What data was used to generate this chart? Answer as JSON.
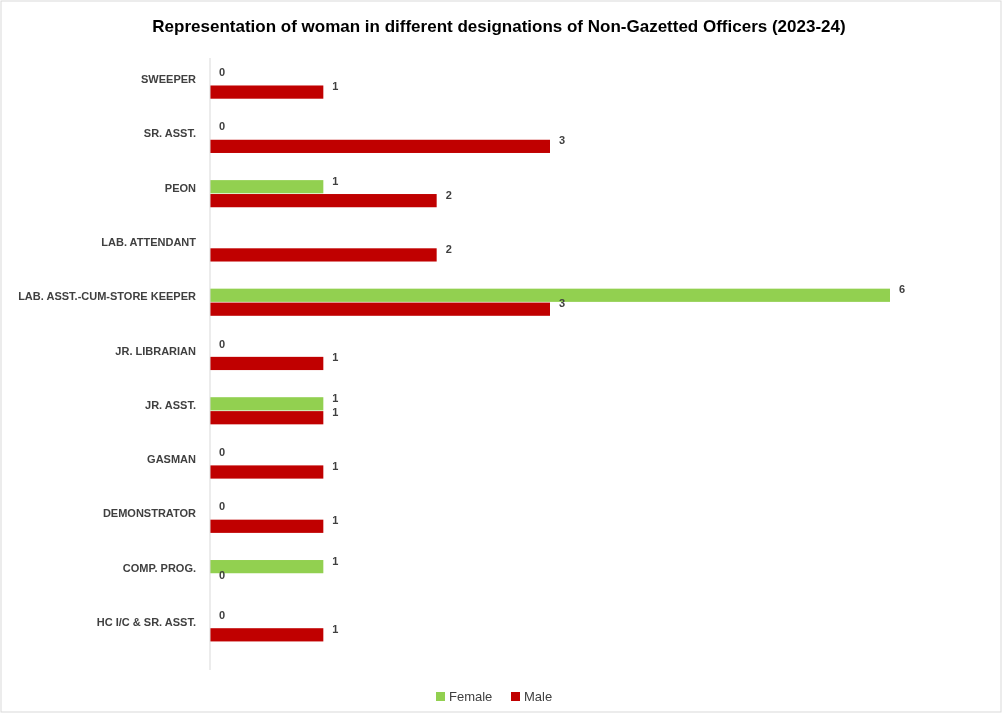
{
  "chart_data": {
    "type": "bar",
    "orientation": "horizontal",
    "title": "Representation of woman in different designations of Non-Gazetted Officers (2023-24)",
    "categories": [
      "SWEEPER",
      "SR. ASST.",
      "PEON",
      "LAB. ATTENDANT",
      "LAB. ASST.-CUM-STORE KEEPER",
      "JR. LIBRARIAN",
      "JR. ASST.",
      "GASMAN",
      "DEMONSTRATOR",
      "COMP. PROG.",
      "HC I/C & SR. ASST."
    ],
    "series": [
      {
        "name": "Female",
        "color": "#92d050",
        "values": [
          0,
          0,
          1,
          null,
          6,
          0,
          1,
          0,
          0,
          1,
          0
        ]
      },
      {
        "name": "Male",
        "color": "#c00000",
        "values": [
          1,
          3,
          2,
          2,
          3,
          1,
          1,
          1,
          1,
          0,
          1
        ]
      }
    ],
    "data_labels": true,
    "legend": "bottom",
    "grid": false
  }
}
